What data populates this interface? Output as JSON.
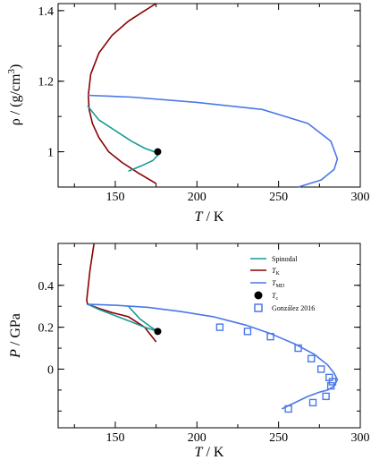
{
  "chart_data": [
    {
      "type": "line",
      "xlabel": {
        "italic": "T",
        "unit": " / K"
      },
      "ylabel": {
        "prefix": "ρ / (g/cm",
        "sup": "3",
        "suffix": ")"
      },
      "xlim": [
        115,
        300
      ],
      "ylim": [
        0.9,
        1.42
      ],
      "xticks": [
        "150",
        "200",
        "250",
        "300"
      ],
      "yticks": [
        "1",
        "1.2",
        "1.4"
      ],
      "colors": {
        "spinodal": "#1a9a96",
        "tk": "#8b0000",
        "tmd": "#4a78e8",
        "tc": "#000000"
      },
      "series": [
        {
          "key": "tk",
          "x": [
            175,
            168,
            158,
            148,
            140,
            135,
            133.5,
            134,
            136,
            140,
            146,
            154,
            164,
            175
          ],
          "y": [
            1.42,
            1.4,
            1.37,
            1.33,
            1.28,
            1.22,
            1.16,
            1.12,
            1.08,
            1.04,
            1.0,
            0.97,
            0.94,
            0.91
          ]
        },
        {
          "key": "spinodal",
          "x": [
            133,
            140,
            150,
            160,
            168,
            174,
            176,
            173,
            166,
            158
          ],
          "y": [
            1.13,
            1.09,
            1.06,
            1.03,
            1.01,
            1.0,
            0.99,
            0.975,
            0.96,
            0.945
          ]
        },
        {
          "key": "tmd",
          "x": [
            133,
            160,
            200,
            240,
            268,
            282,
            286,
            284,
            276,
            262
          ],
          "y": [
            1.16,
            1.155,
            1.14,
            1.12,
            1.08,
            1.03,
            0.98,
            0.95,
            0.92,
            0.9
          ]
        }
      ],
      "points": [
        {
          "key": "tc",
          "x": 176,
          "y": 1.0
        }
      ]
    },
    {
      "type": "line",
      "xlabel": {
        "italic": "T",
        "unit": " / K"
      },
      "ylabel": {
        "italic": "P",
        "unit": " / GPa"
      },
      "xlim": [
        115,
        300
      ],
      "ylim": [
        -0.28,
        0.6
      ],
      "xticks": [
        "150",
        "200",
        "250",
        "300"
      ],
      "yticks": [
        "0",
        "0.2",
        "0.4"
      ],
      "legend": {
        "position": "top-right",
        "entries": [
          {
            "key": "spinodal",
            "label": "Spinodal",
            "sub": ""
          },
          {
            "key": "tk",
            "label": "T",
            "sub": "K"
          },
          {
            "key": "tmd",
            "label": "T",
            "sub": "MD"
          },
          {
            "key": "tc",
            "label": "T",
            "sub": "c"
          },
          {
            "key": "gonzalez",
            "label": "González 2016",
            "sub": ""
          }
        ]
      },
      "colors": {
        "spinodal": "#1a9a96",
        "tk": "#8b0000",
        "tmd": "#4a78e8",
        "tc": "#000000",
        "gonzalez": "#4a78e8"
      },
      "series": [
        {
          "key": "tk",
          "x": [
            137,
            136,
            134.5,
            133.5,
            132.5,
            133,
            135,
            140,
            148,
            158,
            168,
            175
          ],
          "y": [
            0.6,
            0.55,
            0.47,
            0.4,
            0.33,
            0.31,
            0.305,
            0.29,
            0.27,
            0.25,
            0.2,
            0.13
          ]
        },
        {
          "key": "spinodal",
          "x": [
            133,
            140,
            150,
            160,
            168,
            174,
            176
          ],
          "y": [
            0.31,
            0.285,
            0.255,
            0.225,
            0.2,
            0.185,
            0.18
          ]
        },
        {
          "key": "spinodal",
          "x": [
            158,
            165,
            172,
            176
          ],
          "y": [
            0.3,
            0.24,
            0.2,
            0.18
          ]
        },
        {
          "key": "tmd",
          "x": [
            133,
            150,
            170,
            190,
            210,
            230,
            245,
            260,
            272,
            280,
            284,
            286,
            284,
            280,
            275
          ],
          "y": [
            0.31,
            0.305,
            0.295,
            0.275,
            0.25,
            0.21,
            0.17,
            0.12,
            0.07,
            0.02,
            -0.02,
            -0.05,
            -0.08,
            -0.1,
            -0.11
          ]
        },
        {
          "key": "tmd",
          "x": [
            275,
            268,
            260,
            252
          ],
          "y": [
            -0.11,
            -0.13,
            -0.16,
            -0.19
          ]
        }
      ],
      "points": [
        {
          "key": "tc",
          "x": 176,
          "y": 0.18
        }
      ],
      "scatter": {
        "key": "gonzalez",
        "x": [
          214,
          231,
          245,
          262,
          270,
          276,
          281,
          283,
          282,
          279,
          271,
          256
        ],
        "y": [
          0.2,
          0.18,
          0.155,
          0.1,
          0.05,
          0.0,
          -0.04,
          -0.06,
          -0.08,
          -0.13,
          -0.16,
          -0.19
        ]
      }
    }
  ]
}
